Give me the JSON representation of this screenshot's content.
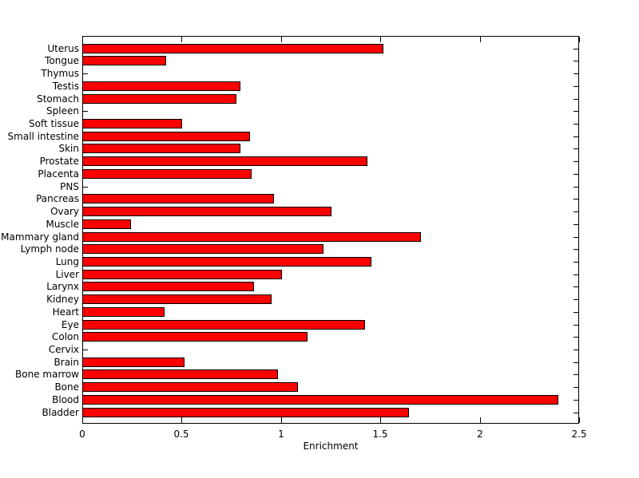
{
  "chart_data": {
    "type": "bar",
    "orientation": "horizontal",
    "title": "",
    "xlabel": "Enrichment",
    "ylabel": "",
    "xlim": [
      0,
      2.5
    ],
    "x_ticks": [
      0,
      0.5,
      1,
      1.5,
      2,
      2.5
    ],
    "x_tick_labels": [
      "0",
      "0.5",
      "1",
      "1.5",
      "2",
      "2.5"
    ],
    "legend": null,
    "grid": false,
    "bar_color": "#FF0000",
    "bar_edge_color": "#000000",
    "axis_color": "#000000",
    "background_color": "#FFFFFF",
    "categories": [
      "Uterus",
      "Tongue",
      "Thymus",
      "Testis",
      "Stomach",
      "Spleen",
      "Soft tissue",
      "Small intestine",
      "Skin",
      "Prostate",
      "Placenta",
      "PNS",
      "Pancreas",
      "Ovary",
      "Muscle",
      "Mammary gland",
      "Lymph node",
      "Lung",
      "Liver",
      "Larynx",
      "Kidney",
      "Heart",
      "Eye",
      "Colon",
      "Cervix",
      "Brain",
      "Bone marrow",
      "Bone",
      "Blood",
      "Bladder"
    ],
    "values": [
      1.51,
      0.42,
      0,
      0.79,
      0.77,
      0,
      0.5,
      0.84,
      0.79,
      1.43,
      0.85,
      0,
      0.96,
      1.25,
      0.24,
      1.7,
      1.21,
      1.45,
      1.0,
      0.86,
      0.95,
      0.41,
      1.42,
      1.13,
      0,
      0.51,
      0.98,
      1.08,
      2.39,
      1.64
    ]
  }
}
